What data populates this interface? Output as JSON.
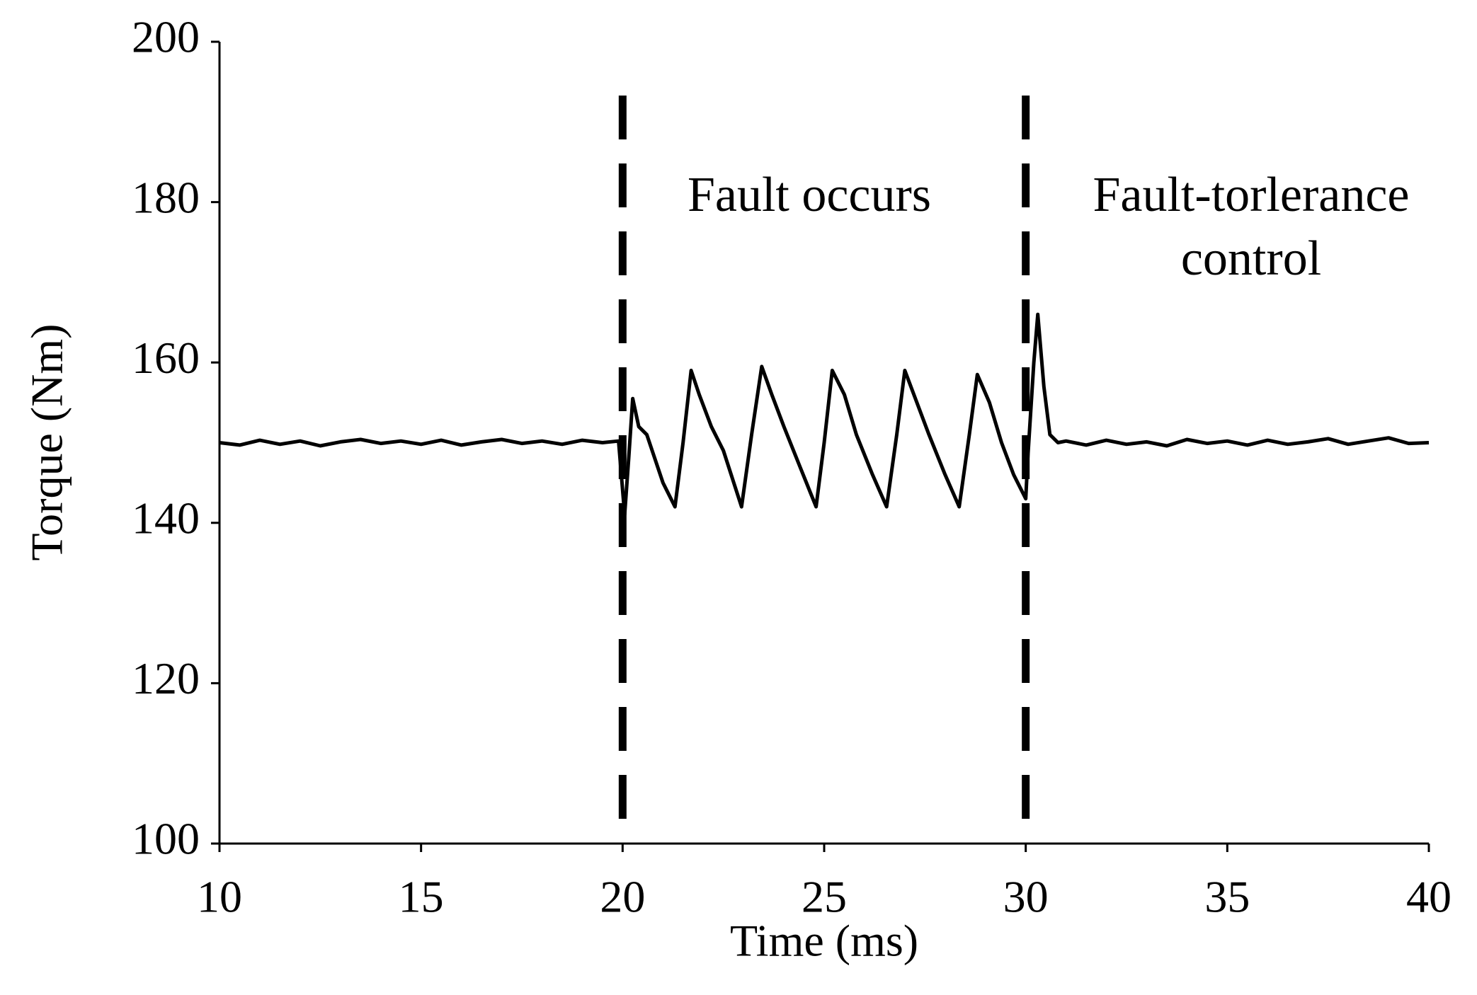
{
  "chart_data": {
    "type": "line",
    "x_label": "Time (ms)",
    "y_label": "Torque (Nm)",
    "x": [
      10,
      10.5,
      11,
      11.5,
      12,
      12.5,
      13,
      13.5,
      14,
      14.5,
      15,
      15.5,
      16,
      16.5,
      17,
      17.5,
      18,
      18.5,
      19,
      19.5,
      19.9,
      20.05,
      20.15,
      20.25,
      20.4,
      20.6,
      21.0,
      21.3,
      21.5,
      21.7,
      21.9,
      22.2,
      22.5,
      22.95,
      23.2,
      23.45,
      23.7,
      24.0,
      24.4,
      24.8,
      25.0,
      25.2,
      25.5,
      25.8,
      26.2,
      26.55,
      26.8,
      27.0,
      27.3,
      27.6,
      28.0,
      28.35,
      28.6,
      28.8,
      29.1,
      29.4,
      29.7,
      30.0,
      30.05,
      30.2,
      30.3,
      30.45,
      30.6,
      30.8,
      31,
      31.5,
      32,
      32.5,
      33,
      33.5,
      34,
      34.5,
      35,
      35.5,
      36,
      36.5,
      37,
      37.5,
      38,
      38.5,
      39,
      39.5,
      40
    ],
    "values": [
      150,
      149.7,
      150.3,
      149.8,
      150.2,
      149.6,
      150.1,
      150.4,
      149.9,
      150.2,
      149.8,
      150.3,
      149.7,
      150.1,
      150.4,
      149.9,
      150.2,
      149.8,
      150.3,
      150,
      150.2,
      141,
      148,
      155.5,
      152,
      151,
      145,
      142,
      150,
      159,
      156,
      152,
      149,
      142,
      151,
      159.5,
      156,
      152,
      147,
      142,
      150,
      159,
      156,
      151,
      146,
      142,
      151,
      159,
      155,
      151,
      146,
      142,
      151,
      158.5,
      155,
      150,
      146,
      143,
      148,
      160,
      166,
      157,
      151,
      150,
      150.2,
      149.7,
      150.3,
      149.8,
      150.1,
      149.6,
      150.4,
      149.9,
      150.2,
      149.7,
      150.3,
      149.8,
      150.1,
      150.5,
      149.8,
      150.2,
      150.6,
      149.9,
      150
    ],
    "color": "#000000",
    "xlim": [
      10,
      40
    ],
    "xticks": [
      10,
      15,
      20,
      25,
      30,
      35,
      40
    ],
    "ylim": [
      100,
      200
    ],
    "yticks": [
      100,
      120,
      140,
      160,
      180,
      200
    ],
    "vlines": [
      20,
      30
    ],
    "annotations": [
      {
        "text": [
          "Fault occurs"
        ]
      },
      {
        "text": [
          "Fault-torlerance",
          "control"
        ]
      }
    ]
  }
}
